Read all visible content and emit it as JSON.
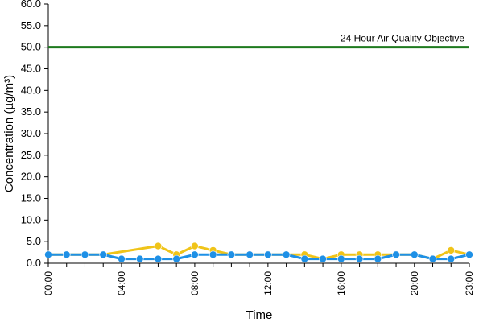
{
  "chart_data": {
    "type": "line",
    "title": "",
    "xlabel": "Time",
    "ylabel": "Concentration (µg/m³)",
    "ylim": [
      0,
      60
    ],
    "y_ticks": [
      "0.0",
      "5.0",
      "10.0",
      "15.0",
      "20.0",
      "25.0",
      "30.0",
      "35.0",
      "40.0",
      "45.0",
      "50.0",
      "55.0",
      "60.0"
    ],
    "x_range_hours": [
      0,
      23
    ],
    "x_ticks": [
      {
        "hour": 0,
        "label": "00:00"
      },
      {
        "hour": 4,
        "label": "04:00"
      },
      {
        "hour": 8,
        "label": "08:00"
      },
      {
        "hour": 12,
        "label": "12:00"
      },
      {
        "hour": 16,
        "label": "16:00"
      },
      {
        "hour": 20,
        "label": "20:00"
      },
      {
        "hour": 23,
        "label": "23:00"
      }
    ],
    "grid": false,
    "legend": "none",
    "objective": {
      "value": 50,
      "label": "24 Hour Air Quality Objective",
      "color": "#1e7a1e"
    },
    "series": [
      {
        "color": "#f0c419",
        "x": [
          0,
          1,
          2,
          3,
          6,
          7,
          8,
          9,
          10,
          11,
          12,
          13,
          14,
          15,
          16,
          17,
          18,
          19,
          20,
          21,
          22,
          23
        ],
        "values": [
          2,
          2,
          2,
          2,
          4,
          2,
          4,
          3,
          2,
          2,
          2,
          2,
          2,
          1,
          2,
          2,
          2,
          2,
          2,
          1,
          3,
          2
        ]
      },
      {
        "color": "#1e90e6",
        "x": [
          0,
          1,
          2,
          3,
          4,
          5,
          6,
          7,
          8,
          9,
          10,
          11,
          12,
          13,
          14,
          15,
          16,
          17,
          18,
          19,
          20,
          21,
          22,
          23
        ],
        "values": [
          2,
          2,
          2,
          2,
          1,
          1,
          1,
          1,
          2,
          2,
          2,
          2,
          2,
          2,
          1,
          1,
          1,
          1,
          1,
          2,
          2,
          1,
          1,
          2
        ]
      }
    ]
  }
}
